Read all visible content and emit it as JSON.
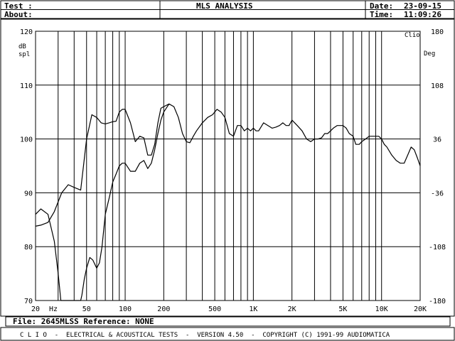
{
  "header": {
    "test_label": "Test :",
    "about_label": "About:",
    "title": "MLS ANALYSIS",
    "date_label": "Date:",
    "date_value": "23-09-15",
    "time_label": "Time:",
    "time_value": "11:09:26"
  },
  "file_bar": {
    "text": "File: 2645MLSS Reference: NONE"
  },
  "footer": {
    "text": "C L I O  -  ELECTRICAL & ACOUSTICAL TESTS  -  VERSION 4.50  -  COPYRIGHT (C) 1991-99 AUDIOMATICA"
  },
  "chart_data": {
    "type": "line",
    "logo": "Clio",
    "x_scale": "log",
    "xlim": [
      20,
      20000
    ],
    "ylim": [
      70,
      120
    ],
    "y2lim": [
      -180,
      180
    ],
    "grid": true,
    "left_axis_unit": [
      "dB",
      "spl"
    ],
    "right_axis_unit": "Deg",
    "x_unit_label": "Hz",
    "x_tick_labels": [
      {
        "x": 20,
        "label": "20"
      },
      {
        "x": 50,
        "label": "50"
      },
      {
        "x": 100,
        "label": "100"
      },
      {
        "x": 200,
        "label": "200"
      },
      {
        "x": 500,
        "label": "500"
      },
      {
        "x": 1000,
        "label": "1K"
      },
      {
        "x": 2000,
        "label": "2K"
      },
      {
        "x": 5000,
        "label": "5K"
      },
      {
        "x": 10000,
        "label": "10K"
      },
      {
        "x": 20000,
        "label": "20K"
      }
    ],
    "x_gridlines": [
      20,
      30,
      40,
      50,
      60,
      70,
      80,
      90,
      100,
      200,
      300,
      400,
      500,
      600,
      700,
      800,
      900,
      1000,
      2000,
      3000,
      4000,
      5000,
      6000,
      7000,
      8000,
      9000,
      10000,
      20000
    ],
    "y_ticks": [
      70,
      80,
      90,
      100,
      110,
      120
    ],
    "y_tick_labels": [
      "70",
      "80",
      "90",
      "100",
      "110",
      "120"
    ],
    "y2_tick_labels": [
      "-180",
      "-108",
      "-36",
      "36",
      "108",
      "180"
    ],
    "series": [
      {
        "x": [
          20,
          22,
          25,
          28,
          32,
          36,
          40,
          45,
          50,
          55,
          60,
          65,
          70,
          75,
          80,
          85,
          90,
          95,
          100,
          110,
          120,
          130,
          140,
          150,
          160,
          170,
          180,
          190,
          200,
          220,
          240,
          260,
          280,
          300,
          320,
          340,
          360,
          400,
          440,
          480,
          520,
          560,
          600,
          650,
          700,
          750,
          800,
          850,
          900,
          950,
          1000,
          1050,
          1100,
          1200,
          1300,
          1400,
          1500,
          1600,
          1700,
          1800,
          1900,
          2000,
          2100,
          2200,
          2400,
          2600,
          2800,
          3000,
          3200,
          3400,
          3600,
          3800,
          4000,
          4200,
          4500,
          4800,
          5000,
          5300,
          5600,
          6000,
          6300,
          6700,
          7000,
          7500,
          8000,
          8500,
          9000,
          9500,
          10000,
          10500,
          11000,
          12000,
          13000,
          14000,
          15000,
          16000,
          17000,
          18000,
          19000,
          20000
        ],
        "y": [
          83.8,
          84,
          84.5,
          86.5,
          90,
          91.5,
          91,
          90.5,
          100,
          104.5,
          104,
          103,
          102.8,
          103,
          103.2,
          103.3,
          105,
          105.5,
          105.5,
          103,
          99.5,
          100.5,
          100.2,
          97,
          97,
          99,
          103,
          105.7,
          106,
          106.5,
          106,
          104,
          101,
          99.5,
          99.3,
          100.5,
          101.5,
          103,
          104,
          104.5,
          105.5,
          105,
          104,
          101,
          100.5,
          102.5,
          102.5,
          101.5,
          102,
          101.5,
          102,
          101.5,
          101.5,
          103,
          102.5,
          102,
          102.2,
          102.5,
          103,
          102.5,
          102.5,
          103.5,
          103,
          102.5,
          101.5,
          100,
          99.5,
          100,
          100,
          100.2,
          101,
          101,
          101.5,
          102,
          102.5,
          102.5,
          102.5,
          102,
          101,
          100.5,
          99,
          99,
          99.5,
          100,
          100.5,
          100.5,
          100.5,
          100.5,
          100,
          99,
          98.5,
          97,
          96,
          95.5,
          95.5,
          97,
          98.5,
          98,
          96.5,
          95
        ]
      },
      {
        "x": [
          20,
          22,
          25,
          28,
          30,
          31.5,
          45,
          46,
          48,
          50,
          53,
          56,
          60,
          63,
          66,
          70,
          75,
          80,
          85,
          90,
          95,
          100,
          110,
          120,
          130,
          140,
          150,
          160,
          170,
          180,
          190,
          200,
          220
        ],
        "y": [
          86,
          87,
          86,
          81,
          75,
          70,
          70,
          71,
          74,
          76,
          78,
          77.5,
          76,
          77,
          80,
          86,
          89,
          92,
          93.5,
          95,
          95.5,
          95.5,
          94,
          94,
          95.5,
          96,
          94.5,
          95.5,
          98,
          101,
          103.5,
          105,
          106.5
        ]
      }
    ]
  }
}
